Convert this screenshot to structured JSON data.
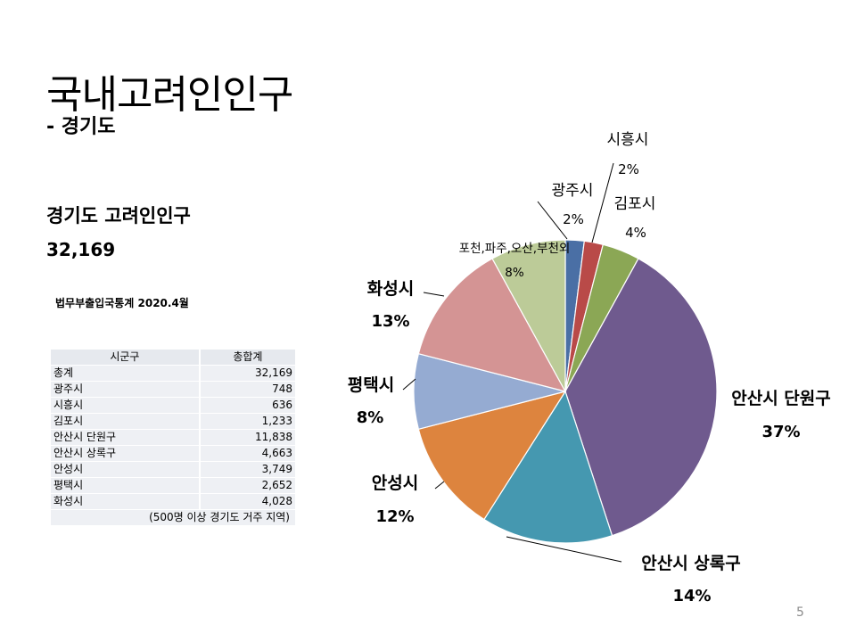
{
  "slide": {
    "title": "국내고려인인구",
    "subtitle": "- 경기도",
    "stat_label": "경기도 고려인인구",
    "stat_value": "32,169",
    "source": "법무부출입국통계 2020.4월",
    "page_number": "5"
  },
  "table": {
    "headers": [
      "시군구",
      "총합계"
    ],
    "rows": [
      {
        "name": "총계",
        "value": "32,169"
      },
      {
        "name": "광주시",
        "value": "748"
      },
      {
        "name": "시흥시",
        "value": "636"
      },
      {
        "name": "김포시",
        "value": "1,233"
      },
      {
        "name": "안산시 단원구",
        "value": "11,838"
      },
      {
        "name": "안산시 상록구",
        "value": "4,663"
      },
      {
        "name": "안성시",
        "value": "3,749"
      },
      {
        "name": "평택시",
        "value": "2,652"
      },
      {
        "name": "화성시",
        "value": "4,028"
      }
    ],
    "note": "(500명 이상 경기도 거주 지역)"
  },
  "chart_data": {
    "type": "pie",
    "categories": [
      "광주시",
      "시흥시",
      "김포시",
      "안산시 단원구",
      "안산시 상록구",
      "안성시",
      "평택시",
      "화성시",
      "포천,파주,오산,부천외"
    ],
    "values": [
      2,
      2,
      4,
      37,
      14,
      12,
      8,
      13,
      8
    ],
    "labels": [
      "2%",
      "2%",
      "4%",
      "37%",
      "14%",
      "12%",
      "8%",
      "13%",
      "8%"
    ],
    "colors": [
      "#4a6fa5",
      "#b94a48",
      "#8ba755",
      "#6f5a8e",
      "#4598b0",
      "#dd843e",
      "#95abd2",
      "#d49494",
      "#bccb98"
    ],
    "bold_labels": [
      false,
      false,
      false,
      true,
      true,
      true,
      true,
      true,
      false
    ]
  }
}
